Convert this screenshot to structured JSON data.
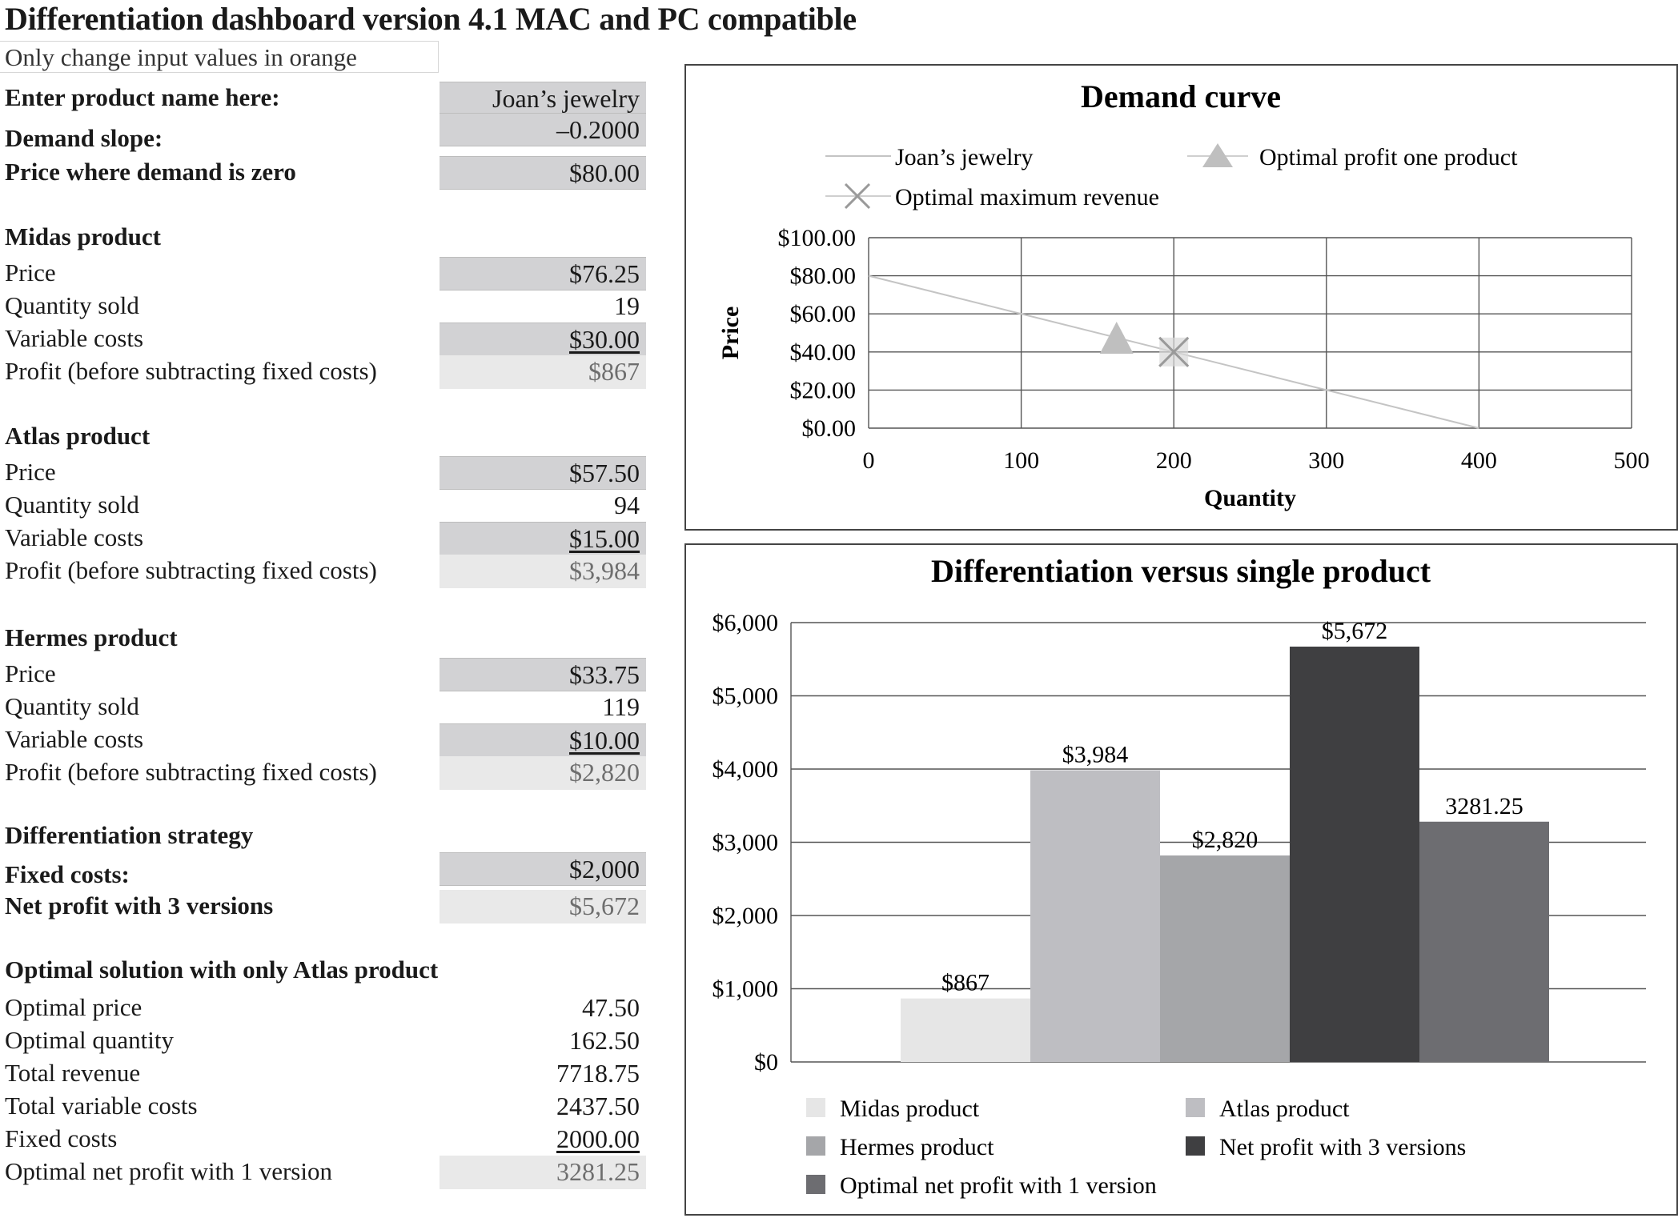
{
  "title": "Differentiation dashboard version 4.1 MAC and PC compatible",
  "note": "Only change input values in orange",
  "inputs": [
    {
      "label": "Enter product name here:",
      "value": "Joan’s jewelry"
    },
    {
      "label": "Demand slope:",
      "value": "–0.2000"
    },
    {
      "label": "Price where demand is zero",
      "value": "$80.00"
    }
  ],
  "midas": {
    "heading": "Midas product",
    "price_label": "Price",
    "price": "$76.25",
    "qty_label": "Quantity sold",
    "qty": "19",
    "vc_label": "Variable costs",
    "vc": "$30.00",
    "profit_label": "Profit (before subtracting fixed costs)",
    "profit": "$867"
  },
  "atlas": {
    "heading": "Atlas product",
    "price_label": "Price",
    "price": "$57.50",
    "qty_label": "Quantity sold",
    "qty": "94",
    "vc_label": "Variable costs",
    "vc": "$15.00",
    "profit_label": "Profit (before subtracting fixed costs)",
    "profit": "$3,984"
  },
  "hermes": {
    "heading": "Hermes product",
    "price_label": "Price",
    "price": "$33.75",
    "qty_label": "Quantity sold",
    "qty": "119",
    "vc_label": "Variable costs",
    "vc": "$10.00",
    "profit_label": "Profit (before subtracting fixed costs)",
    "profit": "$2,820"
  },
  "strategy": {
    "heading": "Differentiation strategy",
    "fixed_label": "Fixed costs:",
    "fixed": "$2,000",
    "net_label": "Net profit with 3 versions",
    "net": "$5,672"
  },
  "optimal": {
    "heading": "Optimal solution with only Atlas product",
    "price_label": "Optimal price",
    "price": "47.50",
    "qty_label": "Optimal quantity",
    "qty": "162.50",
    "rev_label": "Total revenue",
    "rev": "7718.75",
    "tvc_label": "Total variable costs",
    "tvc": "2437.50",
    "fc_label": "Fixed costs",
    "fc": "2000.00",
    "np_label": "Optimal net profit with 1 version",
    "np": "3281.25"
  },
  "chart_data": [
    {
      "type": "line",
      "title": "Demand curve",
      "xlabel": "Quantity",
      "ylabel": "Price",
      "xlim": [
        0,
        500
      ],
      "ylim": [
        0,
        100
      ],
      "x_ticks": [
        "0",
        "100",
        "200",
        "300",
        "400",
        "500"
      ],
      "y_ticks": [
        "$0.00",
        "$20.00",
        "$40.00",
        "$60.00",
        "$80.00",
        "$100.00"
      ],
      "grid": true,
      "legend_position": "top",
      "series": [
        {
          "name": "Joan’s jewelry",
          "kind": "line",
          "color": "#c4c4c4",
          "points": [
            [
              0,
              80
            ],
            [
              400,
              0
            ]
          ]
        },
        {
          "name": "Optimal profit one product",
          "kind": "triangle",
          "color": "#bfbfbf",
          "points": [
            [
              162.5,
              47.5
            ]
          ]
        },
        {
          "name": "Optimal maximum revenue",
          "kind": "x-marker",
          "color": "#9a9a9a",
          "points": [
            [
              200,
              40
            ]
          ]
        }
      ]
    },
    {
      "type": "bar",
      "title": "Differentiation versus single product",
      "ylim": [
        0,
        6000
      ],
      "y_ticks": [
        "$0",
        "$1,000",
        "$2,000",
        "$3,000",
        "$4,000",
        "$5,000",
        "$6,000"
      ],
      "grid": true,
      "legend_position": "bottom",
      "series": [
        {
          "name": "Midas product",
          "value": 867,
          "label": "$867",
          "color": "#e6e6e6"
        },
        {
          "name": "Atlas product",
          "value": 3984,
          "label": "$3,984",
          "color": "#bebec2"
        },
        {
          "name": "Hermes product",
          "value": 2820,
          "label": "$2,820",
          "color": "#a5a6a9"
        },
        {
          "name": "Net profit with 3 versions",
          "value": 5672,
          "label": "$5,672",
          "color": "#3f3f41"
        },
        {
          "name": "Optimal net profit with 1 version",
          "value": 3281.25,
          "label": "3281.25",
          "color": "#6d6d71"
        }
      ]
    }
  ]
}
